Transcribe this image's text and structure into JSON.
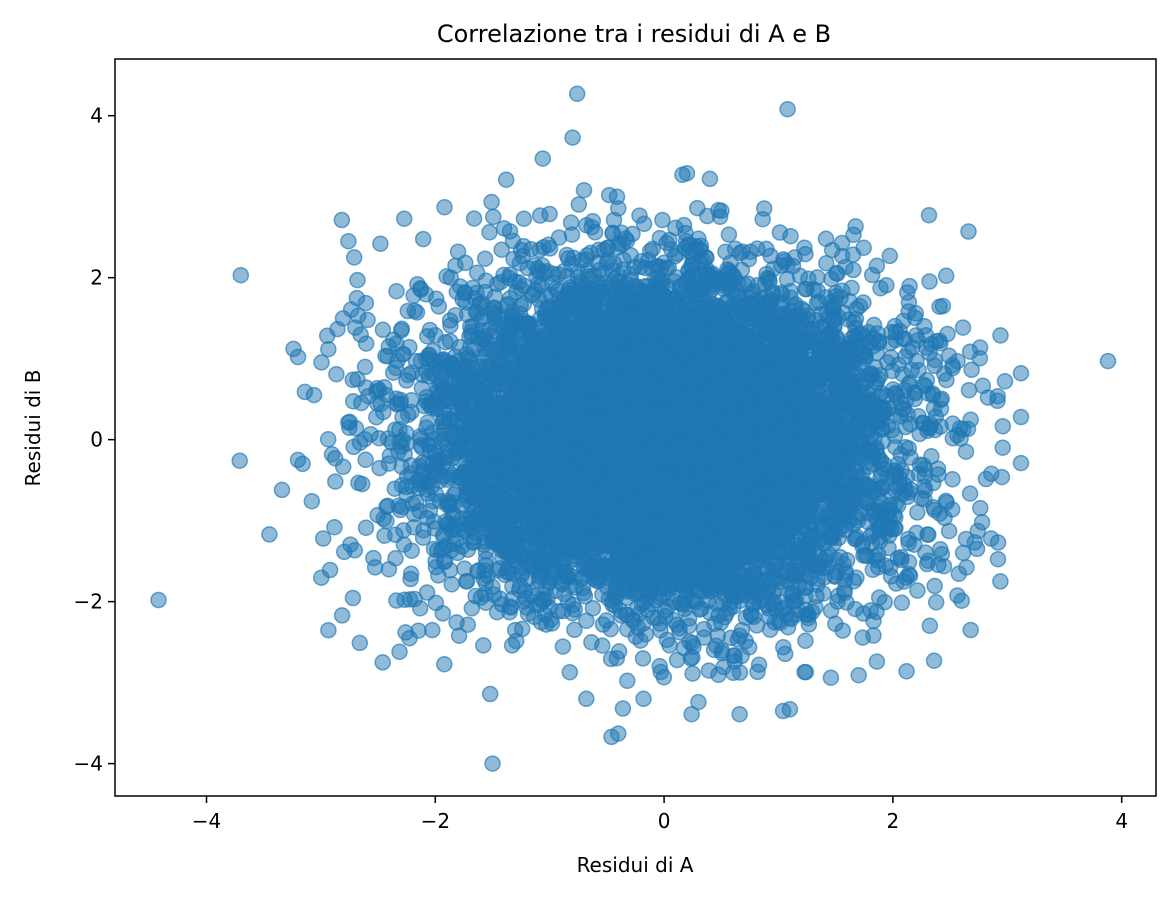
{
  "chart_data": {
    "type": "scatter",
    "title": "Correlazione tra i residui di A e B",
    "xlabel": "Residui di A",
    "ylabel": "Residui di B",
    "xlim": [
      -4.8,
      4.3
    ],
    "ylim": [
      -4.4,
      4.7
    ],
    "xticks": [
      -4,
      -2,
      0,
      2,
      4
    ],
    "yticks": [
      -4,
      -2,
      0,
      2,
      4
    ],
    "xtick_labels": [
      "−4",
      "−2",
      "0",
      "2",
      "4"
    ],
    "ytick_labels": [
      "−4",
      "−2",
      "0",
      "2",
      "4"
    ],
    "grid": false,
    "legend": "none",
    "marker_color": "#1f77b4",
    "marker_opacity": 0.5,
    "dense_cloud": {
      "description_points": "approximately 10000 points, roughly independent standard normal residuals",
      "x_mean": 0.0,
      "x_std": 1.0,
      "y_mean": 0.0,
      "y_std": 1.0,
      "correlation": 0.0,
      "n_points": 10000
    },
    "outliers": [
      {
        "x": -4.42,
        "y": -1.98
      },
      {
        "x": -3.7,
        "y": 2.03
      },
      {
        "x": -3.71,
        "y": -0.26
      },
      {
        "x": -3.45,
        "y": -1.17
      },
      {
        "x": -3.34,
        "y": -0.62
      },
      {
        "x": -3.24,
        "y": 1.12
      },
      {
        "x": -3.2,
        "y": 1.02
      },
      {
        "x": -3.14,
        "y": 0.59
      },
      {
        "x": -3.06,
        "y": 0.55
      },
      {
        "x": -3.2,
        "y": -0.25
      },
      {
        "x": -3.16,
        "y": -0.3
      },
      {
        "x": -3.08,
        "y": -0.76
      },
      {
        "x": -2.98,
        "y": -1.22
      },
      {
        "x": -2.92,
        "y": -1.61
      },
      {
        "x": -2.76,
        "y": 2.45
      },
      {
        "x": -2.68,
        "y": 1.97
      },
      {
        "x": -2.48,
        "y": 2.42
      },
      {
        "x": -2.66,
        "y": -2.51
      },
      {
        "x": -2.46,
        "y": -2.75
      },
      {
        "x": -2.26,
        "y": -2.38
      },
      {
        "x": -1.92,
        "y": 2.87
      },
      {
        "x": -1.38,
        "y": 3.21
      },
      {
        "x": -1.06,
        "y": 3.47
      },
      {
        "x": -0.8,
        "y": 3.73
      },
      {
        "x": -0.76,
        "y": 4.27
      },
      {
        "x": 1.08,
        "y": 4.08
      },
      {
        "x": 0.2,
        "y": 3.29
      },
      {
        "x": 0.4,
        "y": 3.22
      },
      {
        "x": 0.16,
        "y": 3.27
      },
      {
        "x": -0.7,
        "y": 3.08
      },
      {
        "x": -0.48,
        "y": 3.02
      },
      {
        "x": 3.88,
        "y": 0.97
      },
      {
        "x": 3.12,
        "y": 0.82
      },
      {
        "x": 2.98,
        "y": 0.72
      },
      {
        "x": 3.12,
        "y": 0.28
      },
      {
        "x": 3.12,
        "y": -0.29
      },
      {
        "x": 2.96,
        "y": -0.1
      },
      {
        "x": 2.86,
        "y": -0.42
      },
      {
        "x": 2.78,
        "y": -1.02
      },
      {
        "x": 2.92,
        "y": -1.27
      },
      {
        "x": 2.94,
        "y": -1.75
      },
      {
        "x": 2.68,
        "y": -2.35
      },
      {
        "x": 2.36,
        "y": -2.73
      },
      {
        "x": 2.12,
        "y": -2.86
      },
      {
        "x": 1.86,
        "y": -2.74
      },
      {
        "x": 1.24,
        "y": -2.87
      },
      {
        "x": 1.04,
        "y": -3.35
      },
      {
        "x": 1.1,
        "y": -3.33
      },
      {
        "x": 0.66,
        "y": -3.39
      },
      {
        "x": 0.24,
        "y": -3.39
      },
      {
        "x": 0.3,
        "y": -3.24
      },
      {
        "x": -0.46,
        "y": -3.67
      },
      {
        "x": -0.4,
        "y": -3.63
      },
      {
        "x": -1.5,
        "y": -4.0
      },
      {
        "x": -1.52,
        "y": -3.14
      },
      {
        "x": -0.68,
        "y": -3.2
      },
      {
        "x": -0.36,
        "y": -3.32
      },
      {
        "x": -0.18,
        "y": -3.2
      }
    ]
  }
}
